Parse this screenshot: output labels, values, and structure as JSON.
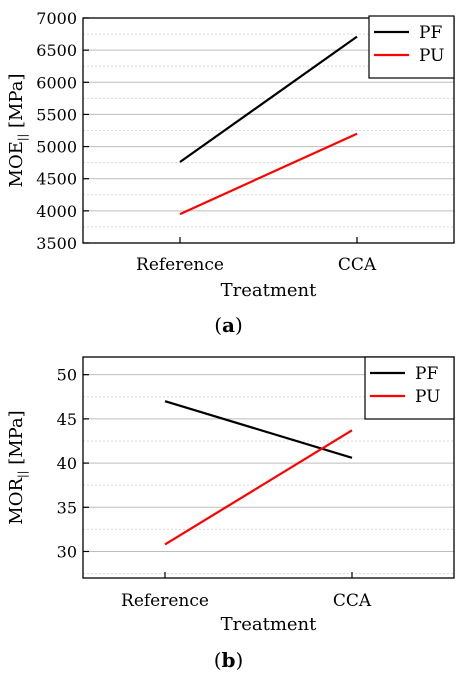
{
  "chart_data": [
    {
      "type": "line",
      "panel_label": "a",
      "categories": [
        "Reference",
        "CCA"
      ],
      "series": [
        {
          "name": "PF",
          "color": "#000000",
          "values": [
            4760,
            6710
          ]
        },
        {
          "name": "PU",
          "color": "#ff0000",
          "values": [
            3950,
            5200
          ]
        }
      ],
      "xlabel": "Treatment",
      "ylabel_main": "MOE",
      "ylabel_sub": "||",
      "ylabel_unit": " [MPa]",
      "ylim": [
        3500,
        7000
      ],
      "yticks": [
        3500,
        4000,
        4500,
        5000,
        5500,
        6000,
        6500,
        7000
      ],
      "grid": true,
      "legend_position": "top-right"
    },
    {
      "type": "line",
      "panel_label": "b",
      "categories": [
        "Reference",
        "CCA"
      ],
      "series": [
        {
          "name": "PF",
          "color": "#000000",
          "values": [
            47.0,
            40.6
          ]
        },
        {
          "name": "PU",
          "color": "#ff0000",
          "values": [
            30.8,
            43.7
          ]
        }
      ],
      "xlabel": "Treatment",
      "ylabel_main": "MOR",
      "ylabel_sub": "||",
      "ylabel_unit": " [MPa]",
      "ylim": [
        27,
        52
      ],
      "yticks": [
        30,
        35,
        40,
        45,
        50
      ],
      "grid": true,
      "legend_position": "top-right"
    }
  ]
}
